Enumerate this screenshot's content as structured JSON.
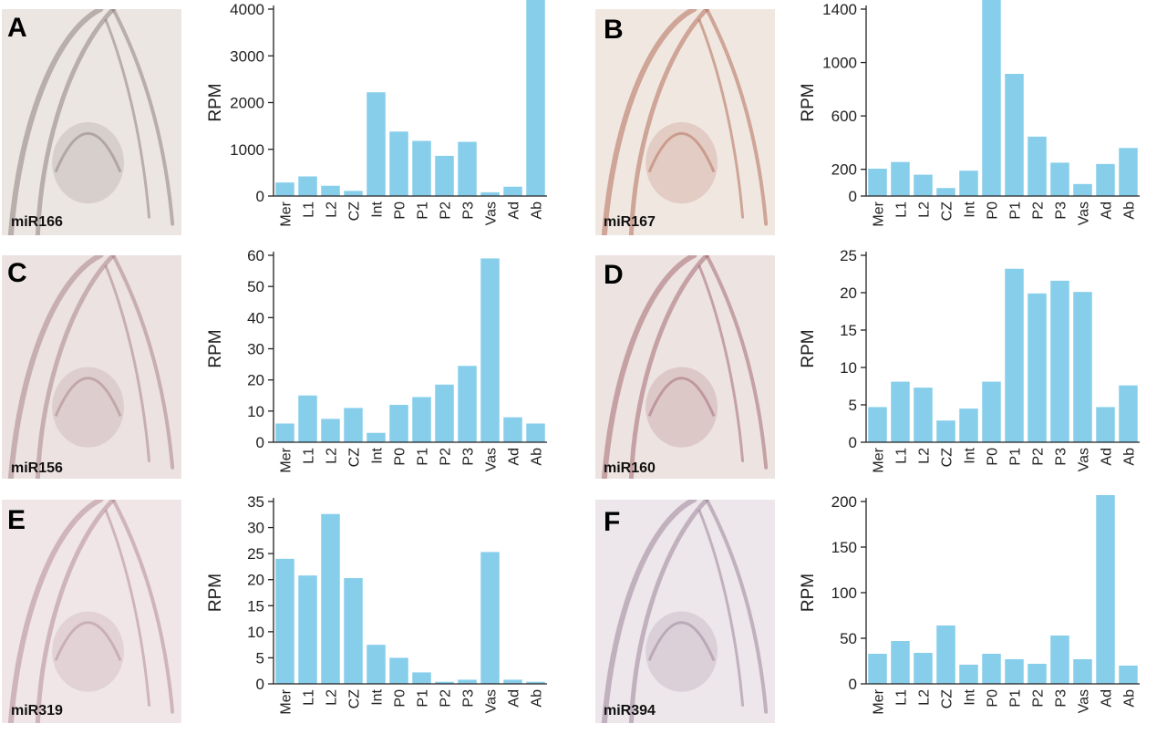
{
  "panels": [
    {
      "letter": "A",
      "label": "miR166",
      "tint": "#7a6a66",
      "bg": "#ece6e2"
    },
    {
      "letter": "B",
      "label": "miR167",
      "tint": "#a5553f",
      "bg": "#f1e7e1"
    },
    {
      "letter": "C",
      "label": "miR156",
      "tint": "#9c6f76",
      "bg": "#ece2e2"
    },
    {
      "letter": "D",
      "label": "miR160",
      "tint": "#94505a",
      "bg": "#ede3e1"
    },
    {
      "letter": "E",
      "label": "miR319",
      "tint": "#a67a86",
      "bg": "#f0e6e8"
    },
    {
      "letter": "F",
      "label": "miR394",
      "tint": "#8c6f88",
      "bg": "#ede6ea"
    }
  ],
  "chart_data": [
    {
      "type": "bar",
      "ylabel": "RPM",
      "xlabel": "",
      "categories": [
        "Mer",
        "L1",
        "L2",
        "CZ",
        "Int",
        "P0",
        "P1",
        "P2",
        "P3",
        "Vas",
        "Ad",
        "Ab"
      ],
      "values": [
        290,
        420,
        220,
        110,
        2220,
        1380,
        1180,
        860,
        1160,
        80,
        200,
        4230
      ],
      "ylim": [
        0,
        4000
      ],
      "yticks": [
        0,
        1000,
        2000,
        3000,
        4000
      ],
      "bar_color": "#87ceeb"
    },
    {
      "type": "bar",
      "ylabel": "RPM",
      "xlabel": "",
      "categories": [
        "Mer",
        "L1",
        "L2",
        "CZ",
        "Int",
        "P0",
        "P1",
        "P2",
        "P3",
        "Vas",
        "Ad",
        "Ab"
      ],
      "values": [
        205,
        255,
        160,
        60,
        190,
        1500,
        915,
        445,
        250,
        90,
        240,
        360
      ],
      "ylim": [
        0,
        1400
      ],
      "yticks": [
        0,
        200,
        600,
        1000,
        1400
      ],
      "bar_color": "#87ceeb"
    },
    {
      "type": "bar",
      "ylabel": "RPM",
      "xlabel": "",
      "categories": [
        "Mer",
        "L1",
        "L2",
        "CZ",
        "Int",
        "P0",
        "P1",
        "P2",
        "P3",
        "Vas",
        "Ad",
        "Ab"
      ],
      "values": [
        6,
        15,
        7.5,
        11,
        3,
        12,
        14.5,
        18.5,
        24.5,
        59,
        8,
        6
      ],
      "ylim": [
        0,
        60
      ],
      "yticks": [
        0,
        10,
        20,
        30,
        40,
        50,
        60
      ],
      "bar_color": "#87ceeb"
    },
    {
      "type": "bar",
      "ylabel": "RPM",
      "xlabel": "",
      "categories": [
        "Mer",
        "L1",
        "L2",
        "CZ",
        "Int",
        "P0",
        "P1",
        "P2",
        "P3",
        "Vas",
        "Ad",
        "Ab"
      ],
      "values": [
        4.7,
        8.1,
        7.3,
        2.9,
        4.5,
        8.1,
        23.2,
        19.9,
        21.6,
        20.1,
        4.7,
        7.6
      ],
      "ylim": [
        0,
        25
      ],
      "yticks": [
        0,
        5,
        10,
        15,
        20,
        25
      ],
      "bar_color": "#87ceeb"
    },
    {
      "type": "bar",
      "ylabel": "RPM",
      "xlabel": "",
      "categories": [
        "Mer",
        "L1",
        "L2",
        "CZ",
        "Int",
        "P0",
        "P1",
        "P2",
        "P3",
        "Vas",
        "Ad",
        "Ab"
      ],
      "values": [
        24,
        20.8,
        32.6,
        20.3,
        7.5,
        5,
        2.2,
        0.4,
        0.8,
        25.3,
        0.8,
        0.4
      ],
      "ylim": [
        0,
        35
      ],
      "yticks": [
        0,
        5,
        10,
        15,
        20,
        25,
        30,
        35
      ],
      "bar_color": "#87ceeb"
    },
    {
      "type": "bar",
      "ylabel": "RPM",
      "xlabel": "",
      "categories": [
        "Mer",
        "L1",
        "L2",
        "CZ",
        "Int",
        "P0",
        "P1",
        "P2",
        "P3",
        "Vas",
        "Ad",
        "Ab"
      ],
      "values": [
        33,
        47,
        34,
        64,
        21,
        33,
        27,
        22,
        53,
        27,
        207,
        20
      ],
      "ylim": [
        0,
        200
      ],
      "yticks": [
        0,
        50,
        100,
        150,
        200
      ],
      "bar_color": "#87ceeb"
    }
  ]
}
